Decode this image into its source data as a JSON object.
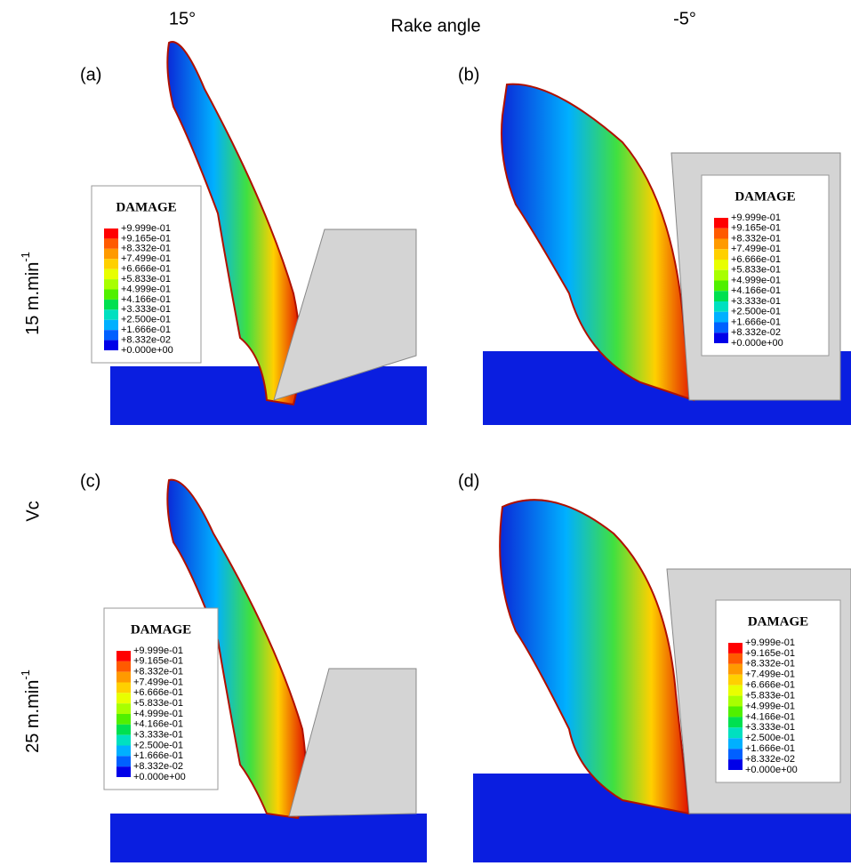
{
  "header": {
    "left": "15°",
    "center": "Rake angle",
    "right": "-5°"
  },
  "rows": [
    {
      "text": "15 m.min",
      "sup": "-1"
    },
    {
      "text": "Vc"
    },
    {
      "text": "25 m.min",
      "sup": "-1"
    }
  ],
  "legend_colors": [
    "#ff0000",
    "#ff5a00",
    "#ff9a00",
    "#ffd000",
    "#e8ff00",
    "#a8ff00",
    "#50f000",
    "#00e050",
    "#00e0c0",
    "#00b0ff",
    "#0060ff",
    "#0000e8"
  ],
  "panels": [
    {
      "label": "(a)",
      "legend": {
        "title": "DAMAGE",
        "levels": [
          "+9.999e-01",
          "+9.165e-01",
          "+8.332e-01",
          "+7.499e-01",
          "+6.666e-01",
          "+5.833e-01",
          "+4.999e-01",
          "+4.166e-01",
          "+3.333e-01",
          "+2.500e-01",
          "+1.666e-01",
          "+8.332e-02",
          "+0.000e+00"
        ]
      }
    },
    {
      "label": "(b)",
      "legend": {
        "title": "DAMAGE",
        "levels": [
          "+9.999e-01",
          "+9.165e-01",
          "+8.332e-01",
          "+7.499e-01",
          "+6.666e-01",
          "+5.833e-01",
          "+4.999e-01",
          "+4.166e-01",
          "+3.333e-01",
          "+2.500e-01",
          "+1.666e-01",
          "+8.332e-02",
          "+0.000e+00"
        ]
      }
    },
    {
      "label": "(c)",
      "legend": {
        "title": "DAMAGE",
        "levels": [
          "+9.999e-01",
          "+9.165e-01",
          "+8.332e-01",
          "+7.499e-01",
          "+6.666e-01",
          "+5.833e-01",
          "+4.999e-01",
          "+4.166e-01",
          "+3.333e-01",
          "+2.500e-01",
          "+1.666e-01",
          "+8.332e-02",
          "+0.000e+00"
        ]
      }
    },
    {
      "label": "(d)",
      "legend": {
        "title": "DAMAGE",
        "levels": [
          "+9.999e-01",
          "+9.165e-01",
          "+8.332e-01",
          "+7.499e-01",
          "+6.666e-01",
          "+5.833e-01",
          "+4.999e-01",
          "+4.166e-01",
          "+3.333e-01",
          "+2.500e-01",
          "+1.666e-01",
          "+8.332e-02",
          "+0.000e+00"
        ]
      }
    }
  ]
}
